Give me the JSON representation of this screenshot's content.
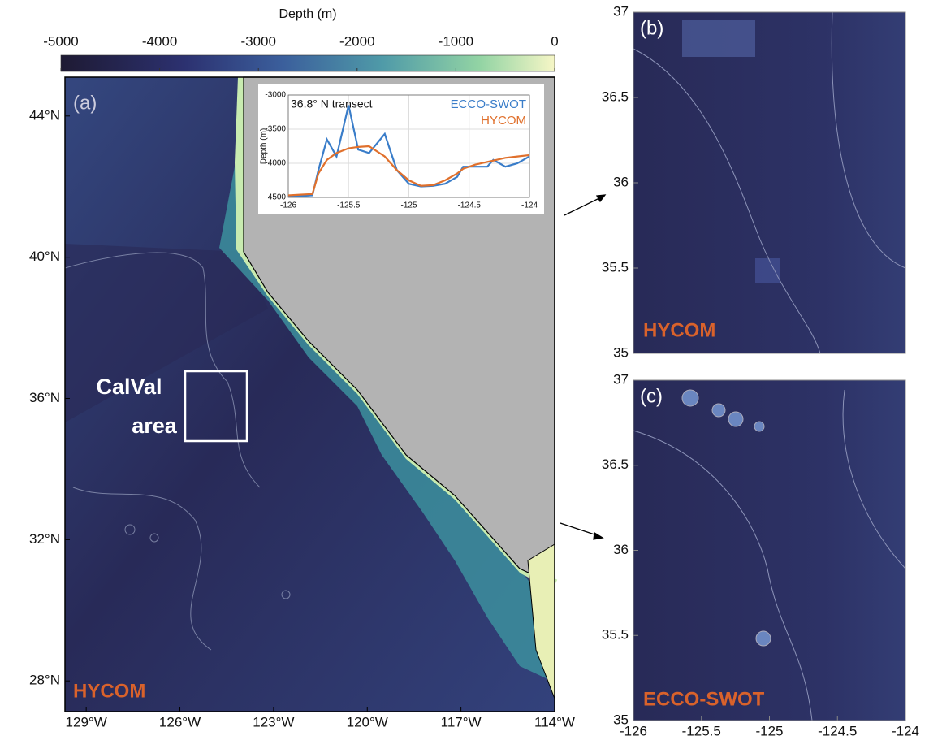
{
  "colorbar": {
    "label": "Depth (m)",
    "lim": [
      -5000,
      0
    ],
    "ticks": [
      -5000,
      -4000,
      -3000,
      -2000,
      -1000,
      0
    ]
  },
  "panel_a": {
    "label": "(a)",
    "model": "HYCOM",
    "box_label": [
      "CalVal",
      "area"
    ],
    "xlim": [
      -129.68,
      -114
    ],
    "ylim": [
      27.13,
      45.1
    ],
    "xticks": [
      {
        "value": -129,
        "label": "129°W"
      },
      {
        "value": -126,
        "label": "126°W"
      },
      {
        "value": -123,
        "label": "123°W"
      },
      {
        "value": -120,
        "label": "120°W"
      },
      {
        "value": -117,
        "label": "117°W"
      },
      {
        "value": -114,
        "label": "114°W"
      }
    ],
    "yticks": [
      {
        "value": 28,
        "label": "28°N"
      },
      {
        "value": 32,
        "label": "32°N"
      },
      {
        "value": 36,
        "label": "36°N"
      },
      {
        "value": 40,
        "label": "40°N"
      },
      {
        "value": 44,
        "label": "44°N"
      }
    ]
  },
  "chart_data": {
    "type": "line",
    "title": "36.8° N transect",
    "ylabel": "Depth (m)",
    "xlim": [
      -126,
      -124
    ],
    "xticks": [
      -126,
      -125.5,
      -125,
      -124.5,
      -124
    ],
    "ylim": [
      -4500,
      -3000
    ],
    "yticks": [
      -4500,
      -4000,
      -3500,
      -3000
    ],
    "grid": true,
    "x": [
      -126,
      -125.9,
      -125.8,
      -125.75,
      -125.68,
      -125.6,
      -125.5,
      -125.42,
      -125.33,
      -125.2,
      -125.1,
      -125,
      -124.9,
      -124.8,
      -124.7,
      -124.6,
      -124.55,
      -124.45,
      -124.35,
      -124.3,
      -124.2,
      -124.1,
      -124
    ],
    "series": [
      {
        "name": "ECCO-SWOT",
        "color": "#3a7dc9",
        "values": [
          -4480,
          -4480,
          -4470,
          -4100,
          -3650,
          -3900,
          -3150,
          -3800,
          -3850,
          -3570,
          -4100,
          -4300,
          -4340,
          -4330,
          -4300,
          -4200,
          -4050,
          -4050,
          -4050,
          -3950,
          -4050,
          -4000,
          -3900
        ]
      },
      {
        "name": "HYCOM",
        "color": "#e0702c",
        "values": [
          -4470,
          -4460,
          -4450,
          -4150,
          -3950,
          -3850,
          -3780,
          -3760,
          -3750,
          -3900,
          -4100,
          -4250,
          -4330,
          -4320,
          -4250,
          -4150,
          -4080,
          -4020,
          -3980,
          -3960,
          -3920,
          -3900,
          -3880
        ]
      }
    ]
  },
  "panel_b": {
    "label": "(b)",
    "model": "HYCOM",
    "ylim": [
      35,
      37
    ],
    "yticks": [
      35,
      35.5,
      36,
      36.5,
      37
    ]
  },
  "panel_c": {
    "label": "(c)",
    "model": "ECCO-SWOT",
    "ylim": [
      35,
      37
    ],
    "yticks": [
      35,
      35.5,
      36,
      36.5,
      37
    ],
    "xlim": [
      -126,
      -124
    ],
    "xticks": [
      -126,
      -125.5,
      -125,
      -124.5,
      -124
    ]
  }
}
